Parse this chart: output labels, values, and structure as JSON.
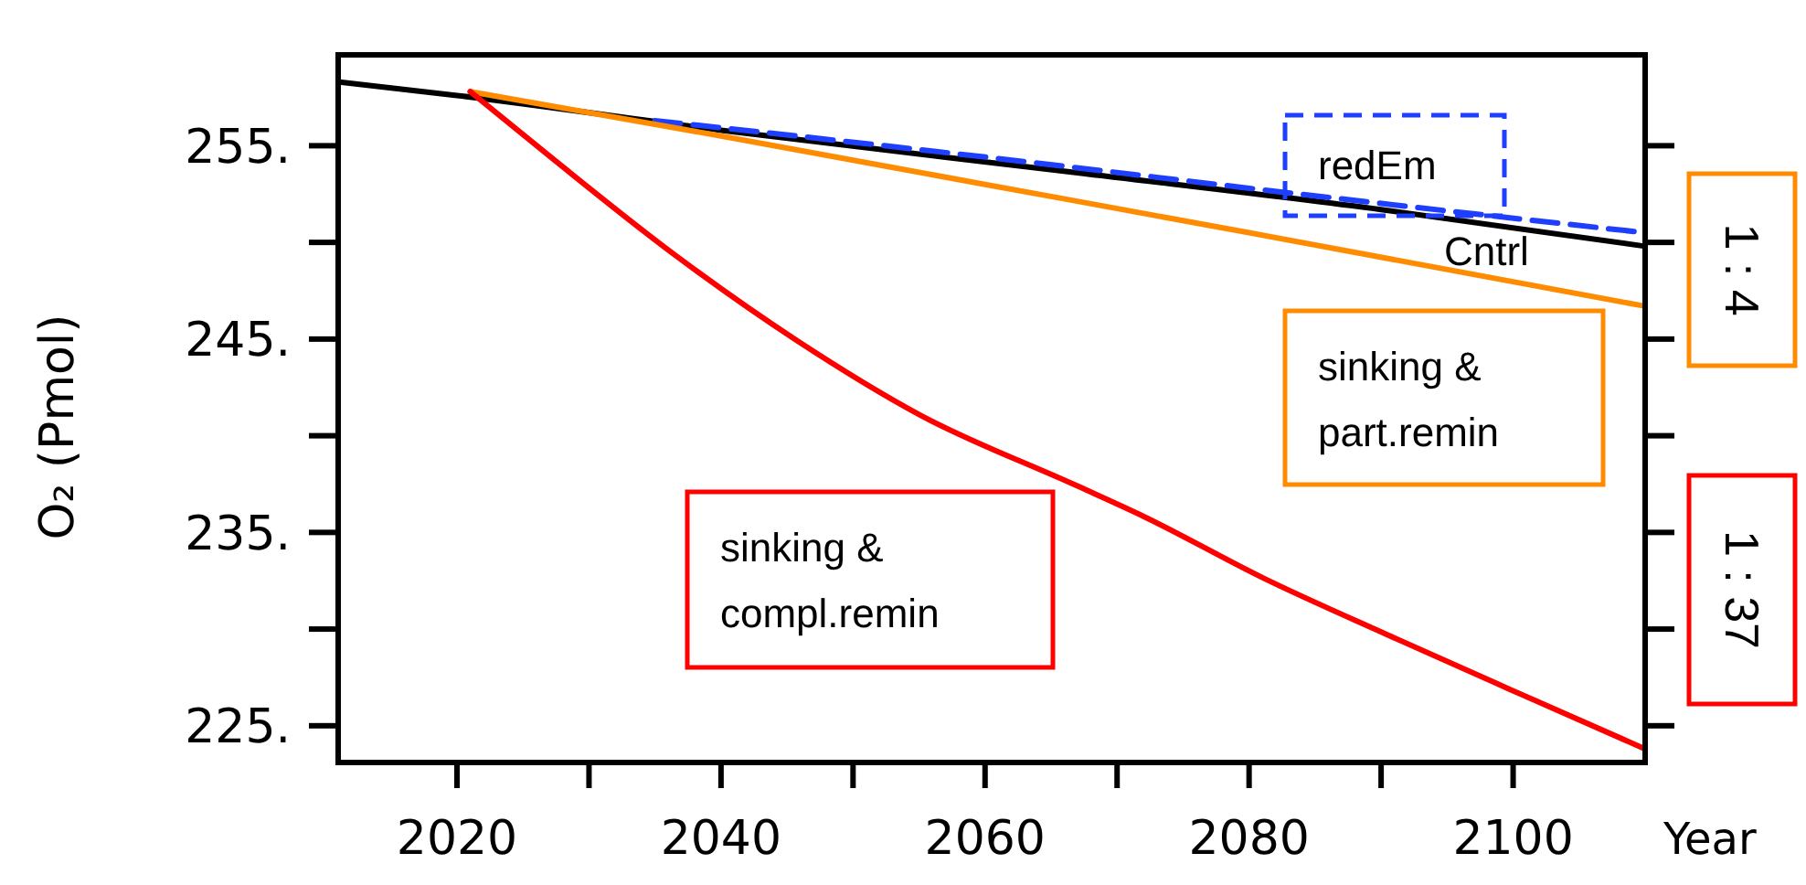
{
  "chart_data": {
    "type": "line",
    "xlabel": "Year",
    "ylabel": "O₂ (Pmol)",
    "xlim": [
      2011,
      2110
    ],
    "ylim": [
      223.1,
      259.7
    ],
    "xticks": [
      {
        "value": 2020,
        "label": "2020"
      },
      {
        "value": 2030,
        "label": null
      },
      {
        "value": 2040,
        "label": "2040"
      },
      {
        "value": 2050,
        "label": null
      },
      {
        "value": 2060,
        "label": "2060"
      },
      {
        "value": 2070,
        "label": null
      },
      {
        "value": 2080,
        "label": "2080"
      },
      {
        "value": 2090,
        "label": null
      },
      {
        "value": 2100,
        "label": "2100"
      }
    ],
    "yticks": [
      {
        "value": 225,
        "label": "225."
      },
      {
        "value": 230,
        "label": null
      },
      {
        "value": 235,
        "label": "235."
      },
      {
        "value": 240,
        "label": null
      },
      {
        "value": 245,
        "label": "245."
      },
      {
        "value": 250,
        "label": null
      },
      {
        "value": 255,
        "label": "255."
      }
    ],
    "grid": false,
    "marker": "none",
    "series": [
      {
        "name": "Cntrl",
        "color": "#000000",
        "x": [
          2011,
          2020,
          2040,
          2067,
          2090,
          2110
        ],
        "values": [
          258.3,
          257.6,
          255.8,
          253.6,
          251.7,
          249.8
        ]
      },
      {
        "name": "redEm",
        "color": "#1f3fff",
        "line_style": "dashed",
        "x": [
          2035,
          2064,
          2080,
          2110
        ],
        "values": [
          256.3,
          254.1,
          252.8,
          250.5
        ]
      },
      {
        "name": "sinking & part.remin",
        "color": "#ff8c00",
        "x": [
          2021,
          2040,
          2060,
          2080,
          2110
        ],
        "values": [
          257.8,
          255.5,
          253.0,
          250.5,
          246.7
        ]
      },
      {
        "name": "sinking & compl.remin",
        "color": "#ff0000",
        "x": [
          2021,
          2027.3,
          2036.6,
          2045.8,
          2055,
          2067,
          2072.1,
          2081.2,
          2090.5,
          2099.7,
          2110
        ],
        "values": [
          257.8,
          254.3,
          249.3,
          244.9,
          241.1,
          237.4,
          235.8,
          232.6,
          229.7,
          226.9,
          223.8
        ]
      }
    ],
    "annotations": [
      "1 : 4",
      "1 : 37"
    ]
  }
}
